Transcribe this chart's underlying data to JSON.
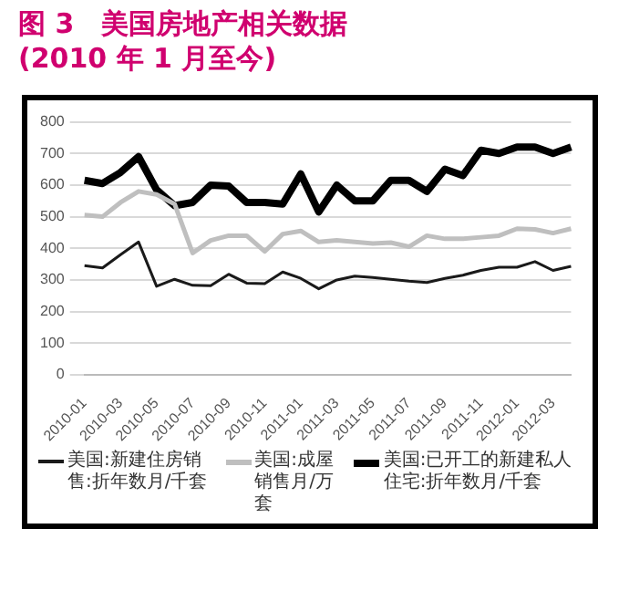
{
  "chart_data": {
    "type": "line",
    "title": "图 3　美国房地产相关数据(2010 年 1 月至今)",
    "categories": [
      "2010-01",
      null,
      "2010-03",
      null,
      "2010-05",
      null,
      "2010-07",
      null,
      "2010-09",
      null,
      "2010-11",
      null,
      "2011-01",
      null,
      "2011-03",
      null,
      "2011-05",
      null,
      "2011-07",
      null,
      "2011-09",
      null,
      "2011-11",
      null,
      "2012-01",
      null,
      "2012-03",
      null
    ],
    "series": [
      {
        "name": "美国:新建住房销售:折年数月/千套",
        "color": "#1a1a1a",
        "values": [
          345,
          338,
          380,
          420,
          280,
          302,
          283,
          282,
          318,
          290,
          288,
          325,
          305,
          272,
          300,
          312,
          308,
          302,
          296,
          292,
          305,
          315,
          330,
          340,
          340,
          358,
          330,
          343
        ]
      },
      {
        "name": "美国:成屋销售月/万套",
        "color": "#bfbfbf",
        "values": [
          505,
          500,
          545,
          580,
          570,
          540,
          385,
          425,
          440,
          440,
          390,
          445,
          455,
          420,
          425,
          420,
          415,
          418,
          405,
          440,
          430,
          430,
          435,
          440,
          462,
          460,
          448,
          462
        ]
      },
      {
        "name": "美国:已开工的新建私人住宅:折年数月/千套",
        "color": "#000000",
        "values": [
          615,
          605,
          640,
          690,
          585,
          535,
          545,
          600,
          597,
          545,
          545,
          540,
          635,
          515,
          600,
          550,
          550,
          615,
          615,
          580,
          650,
          630,
          710,
          700,
          720,
          720,
          700,
          720
        ]
      }
    ],
    "ylim": [
      0,
      800
    ],
    "yticks": [
      0,
      100,
      200,
      300,
      400,
      500,
      600,
      700,
      800
    ],
    "grid": "y",
    "legend": "bottom",
    "marker": "none",
    "line_style": "solid"
  }
}
